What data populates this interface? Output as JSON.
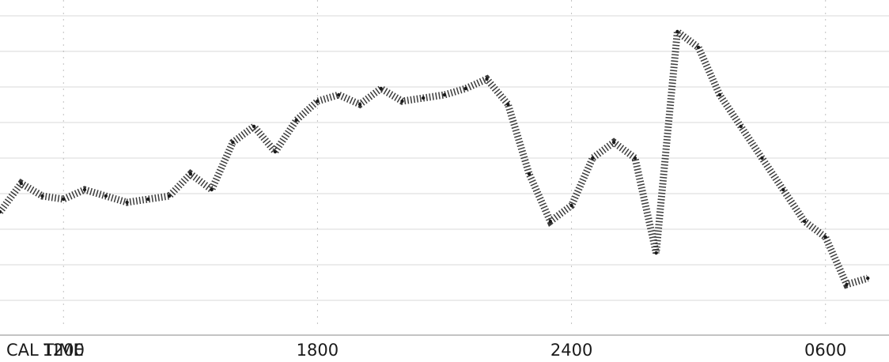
{
  "chart_data": {
    "type": "scatter",
    "xlabel": "CAL TIME",
    "x_tick_labels": [
      "1200",
      "1800",
      "2400",
      "0600"
    ],
    "x_tick_hours": [
      12,
      18,
      24,
      30
    ],
    "xlim_hours": [
      10.5,
      31.5
    ],
    "ylim": [
      0,
      1
    ],
    "grid": true,
    "trace_color": "#1a1a1a",
    "series": [
      {
        "x_hours": [
          10.5,
          11.0,
          11.5,
          12.0,
          12.5,
          13.0,
          13.5,
          14.0,
          14.5,
          15.0,
          15.5,
          16.0,
          16.5,
          17.0,
          17.5,
          18.0,
          18.5,
          19.0,
          19.5,
          20.0,
          20.5,
          21.0,
          21.5,
          22.0,
          22.5,
          23.0,
          23.5,
          24.0,
          24.5,
          25.0,
          25.5,
          26.0,
          26.5,
          27.0,
          27.5,
          28.0,
          28.5,
          29.0,
          29.5,
          30.0,
          30.5,
          31.0
        ],
        "values": [
          0.33,
          0.42,
          0.38,
          0.37,
          0.4,
          0.38,
          0.36,
          0.37,
          0.38,
          0.45,
          0.4,
          0.55,
          0.6,
          0.52,
          0.62,
          0.68,
          0.7,
          0.67,
          0.72,
          0.68,
          0.69,
          0.7,
          0.72,
          0.75,
          0.67,
          0.45,
          0.3,
          0.35,
          0.5,
          0.55,
          0.5,
          0.2,
          0.9,
          0.85,
          0.7,
          0.6,
          0.5,
          0.4,
          0.3,
          0.25,
          0.1,
          0.12
        ]
      }
    ]
  }
}
